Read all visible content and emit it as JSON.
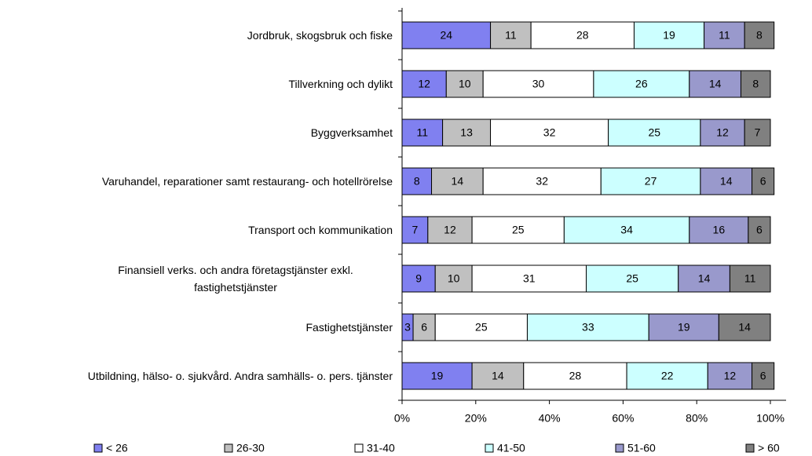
{
  "chart_data": {
    "type": "stacked_bar_horizontal",
    "categories": [
      "Jordbruk, skogsbruk och fiske",
      "Tillverkning och dylikt",
      "Byggverksamhet",
      "Varuhandel, reparationer samt restaurang- och hotellrörelse",
      "Transport och kommunikation",
      "Finansiell verks. och andra företagstjänster exkl. fastighetstjänster",
      "Fastighetstjänster",
      "Utbildning, hälso- o. sjukvård. Andra samhälls- o. pers. tjänster"
    ],
    "series": [
      {
        "name": "< 26",
        "color": "#8080f0",
        "values": [
          24,
          12,
          11,
          8,
          7,
          9,
          3,
          19
        ]
      },
      {
        "name": "26-30",
        "color": "#c0c0c0",
        "values": [
          11,
          10,
          13,
          14,
          12,
          10,
          6,
          14
        ]
      },
      {
        "name": "31-40",
        "color": "#ffffff",
        "values": [
          28,
          30,
          32,
          32,
          25,
          31,
          25,
          28
        ]
      },
      {
        "name": "41-50",
        "color": "#ccffff",
        "values": [
          19,
          26,
          25,
          27,
          34,
          25,
          33,
          22
        ]
      },
      {
        "name": "51-60",
        "color": "#9999cc",
        "values": [
          11,
          14,
          12,
          14,
          16,
          14,
          19,
          12
        ]
      },
      {
        "name": "> 60",
        "color": "#808080",
        "values": [
          8,
          8,
          7,
          6,
          6,
          11,
          14,
          6
        ]
      }
    ],
    "xlim": [
      0,
      100
    ],
    "xticks": [
      {
        "value": 0,
        "label": "0%"
      },
      {
        "value": 20,
        "label": "20%"
      },
      {
        "value": 40,
        "label": "40%"
      },
      {
        "value": 60,
        "label": "60%"
      },
      {
        "value": 80,
        "label": "80%"
      },
      {
        "value": 100,
        "label": "100%"
      }
    ]
  }
}
